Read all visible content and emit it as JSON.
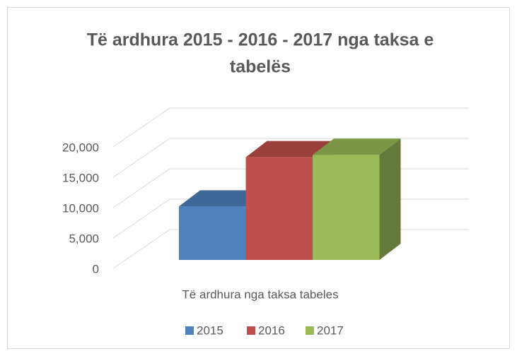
{
  "chart_data": {
    "type": "bar3d",
    "title_lines": [
      "Të ardhura 2015 - 2016 - 2017 nga taksa e",
      "tabelës"
    ],
    "categories": [
      "Të ardhura nga taksa tabeles"
    ],
    "series": [
      {
        "name": "2015",
        "color": "#4f81bd",
        "values": [
          8800
        ]
      },
      {
        "name": "2016",
        "color": "#c0504d",
        "values": [
          16900
        ]
      },
      {
        "name": "2017",
        "color": "#9bbb59",
        "values": [
          17300
        ]
      }
    ],
    "ylim": [
      0,
      20000
    ],
    "yticks": [
      0,
      {
        "value": 5000,
        "label": "5,000"
      },
      {
        "value": 10000,
        "label": "10,000"
      },
      {
        "value": 15000,
        "label": "15,000"
      },
      {
        "value": 20000,
        "label": "20,000"
      }
    ],
    "grid": true,
    "legend": "bottom"
  }
}
